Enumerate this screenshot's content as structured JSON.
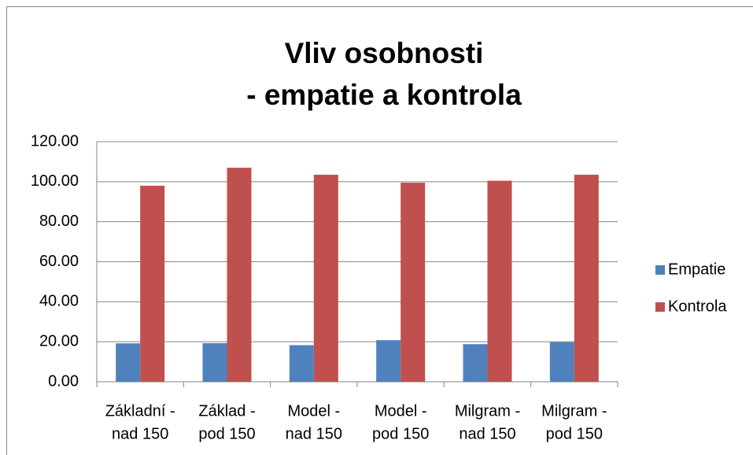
{
  "chart_data": {
    "type": "bar",
    "title": [
      "Vliv osobnosti",
      "- empatie a kontrola"
    ],
    "categories": [
      [
        "Základní -",
        "nad 150"
      ],
      [
        "Základ -",
        "pod 150"
      ],
      [
        "Model -",
        "nad 150"
      ],
      [
        "Model -",
        "pod 150"
      ],
      [
        "Milgram -",
        "nad 150"
      ],
      [
        "Milgram -",
        "pod 150"
      ]
    ],
    "series": [
      {
        "name": "Empatie",
        "color": "#4f81bd",
        "values": [
          19.2,
          19.3,
          18.3,
          20.8,
          18.8,
          19.8
        ]
      },
      {
        "name": "Kontrola",
        "color": "#c0504d",
        "values": [
          98,
          107,
          103.5,
          99.5,
          100.5,
          103.5
        ]
      }
    ],
    "ylim": [
      0,
      120
    ],
    "yticks": [
      {
        "value": 0,
        "label": "0.00"
      },
      {
        "value": 20,
        "label": "20.00"
      },
      {
        "value": 40,
        "label": "40.00"
      },
      {
        "value": 60,
        "label": "60.00"
      },
      {
        "value": 80,
        "label": "80.00"
      },
      {
        "value": 100,
        "label": "100.00"
      },
      {
        "value": 120,
        "label": "120.00"
      }
    ],
    "grid": true,
    "legend": "right"
  }
}
